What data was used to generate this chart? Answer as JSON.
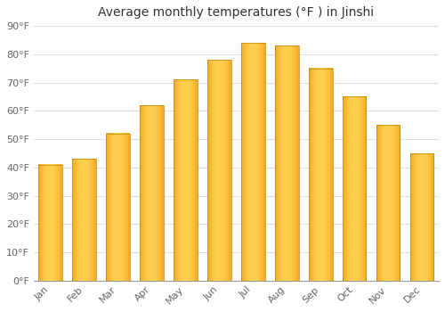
{
  "months": [
    "Jan",
    "Feb",
    "Mar",
    "Apr",
    "May",
    "Jun",
    "Jul",
    "Aug",
    "Sep",
    "Oct",
    "Nov",
    "Dec"
  ],
  "values": [
    41,
    43,
    52,
    62,
    71,
    78,
    84,
    83,
    75,
    65,
    55,
    45
  ],
  "bar_color_dark": "#F5A623",
  "bar_color_mid": "#FFCA28",
  "bar_color_light": "#FFE082",
  "bar_edge_color": "#C8960C",
  "title": "Average monthly temperatures (°F ) in Jinshi",
  "ylim": [
    0,
    90
  ],
  "yticks": [
    0,
    10,
    20,
    30,
    40,
    50,
    60,
    70,
    80,
    90
  ],
  "ytick_labels": [
    "0°F",
    "10°F",
    "20°F",
    "30°F",
    "40°F",
    "50°F",
    "60°F",
    "70°F",
    "80°F",
    "90°F"
  ],
  "bg_color": "#ffffff",
  "plot_bg_color": "#ffffff",
  "grid_color": "#e0e0e0",
  "title_fontsize": 10,
  "tick_fontsize": 8,
  "bar_width": 0.7
}
